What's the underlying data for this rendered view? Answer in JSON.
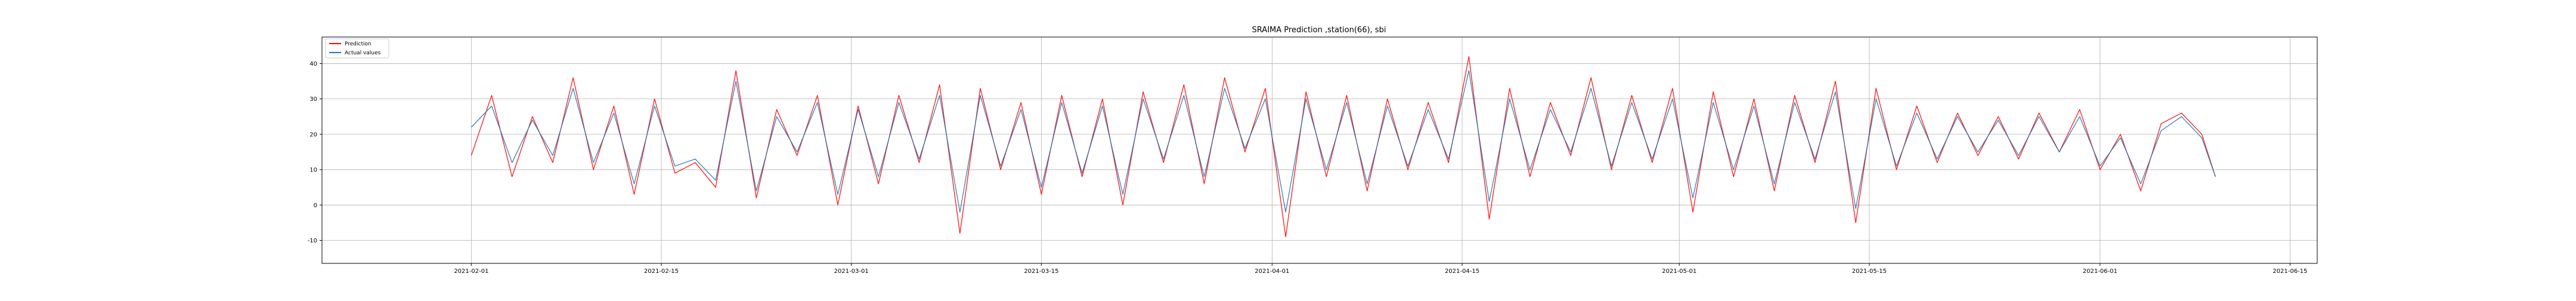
{
  "chart_data": {
    "type": "line",
    "title": "SRAIMA Prediction ,station(66), sbi",
    "xlabel": "",
    "ylabel": "",
    "x_range": [
      "2021-01-21",
      "2021-06-17"
    ],
    "xlim": [
      -11,
      136
    ],
    "ylim": [
      -16.5,
      47.5
    ],
    "grid": true,
    "legend_position": "top-left",
    "x_ticks": [
      {
        "label": "2021-02-01",
        "day": 0
      },
      {
        "label": "2021-02-15",
        "day": 14
      },
      {
        "label": "2021-03-01",
        "day": 28
      },
      {
        "label": "2021-03-15",
        "day": 42
      },
      {
        "label": "2021-04-01",
        "day": 59
      },
      {
        "label": "2021-04-15",
        "day": 73
      },
      {
        "label": "2021-05-01",
        "day": 89
      },
      {
        "label": "2021-05-15",
        "day": 103
      },
      {
        "label": "2021-06-01",
        "day": 120
      },
      {
        "label": "2021-06-15",
        "day": 134
      }
    ],
    "y_ticks": [
      -10,
      0,
      10,
      20,
      30,
      40
    ],
    "series": [
      {
        "name": "Prediction",
        "color": "#ff0000",
        "x": [
          0,
          1.5,
          3,
          4.5,
          6,
          7.5,
          9,
          10.5,
          12,
          13.5,
          15,
          16.5,
          18,
          19.5,
          21,
          22.5,
          24,
          25.5,
          27,
          28.5,
          30,
          31.5,
          33,
          34.5,
          36,
          37.5,
          39,
          40.5,
          42,
          43.5,
          45,
          46.5,
          48,
          49.5,
          51,
          52.5,
          54,
          55.5,
          57,
          58.5,
          60,
          61.5,
          63,
          64.5,
          66,
          67.5,
          69,
          70.5,
          72,
          73.5,
          75,
          76.5,
          78,
          79.5,
          81,
          82.5,
          84,
          85.5,
          87,
          88.5,
          90,
          91.5,
          93,
          94.5,
          96,
          97.5,
          99,
          100.5,
          102,
          103.5,
          105,
          106.5,
          108,
          109.5,
          111,
          112.5,
          114,
          115.5,
          117,
          118.5,
          120,
          121.5,
          123,
          124.5,
          126,
          127.5,
          128.5
        ],
        "values": [
          14,
          31,
          8,
          25,
          12,
          36,
          10,
          28,
          3,
          30,
          9,
          12,
          5,
          38,
          2,
          27,
          14,
          31,
          0,
          28,
          6,
          31,
          12,
          34,
          -8,
          33,
          10,
          29,
          3,
          31,
          8,
          30,
          0,
          32,
          12,
          34,
          6,
          36,
          15,
          33,
          -9,
          32,
          8,
          31,
          4,
          30,
          10,
          29,
          12,
          42,
          -4,
          33,
          8,
          29,
          14,
          36,
          10,
          31,
          12,
          33,
          -2,
          32,
          8,
          30,
          4,
          31,
          12,
          35,
          -5,
          33,
          10,
          28,
          12,
          26,
          14,
          25,
          13,
          26,
          15,
          27,
          10,
          20,
          4,
          23,
          26,
          20,
          8
        ]
      },
      {
        "name": "Actual values",
        "color": "#1f77b4",
        "x": [
          0,
          1.5,
          3,
          4.5,
          6,
          7.5,
          9,
          10.5,
          12,
          13.5,
          15,
          16.5,
          18,
          19.5,
          21,
          22.5,
          24,
          25.5,
          27,
          28.5,
          30,
          31.5,
          33,
          34.5,
          36,
          37.5,
          39,
          40.5,
          42,
          43.5,
          45,
          46.5,
          48,
          49.5,
          51,
          52.5,
          54,
          55.5,
          57,
          58.5,
          60,
          61.5,
          63,
          64.5,
          66,
          67.5,
          69,
          70.5,
          72,
          73.5,
          75,
          76.5,
          78,
          79.5,
          81,
          82.5,
          84,
          85.5,
          87,
          88.5,
          90,
          91.5,
          93,
          94.5,
          96,
          97.5,
          99,
          100.5,
          102,
          103.5,
          105,
          106.5,
          108,
          109.5,
          111,
          112.5,
          114,
          115.5,
          117,
          118.5,
          120,
          121.5,
          123,
          124.5,
          126,
          127.5,
          128.5
        ],
        "values": [
          22,
          28,
          12,
          24,
          14,
          33,
          12,
          26,
          6,
          28,
          11,
          13,
          7,
          35,
          4,
          25,
          15,
          29,
          3,
          27,
          8,
          29,
          13,
          31,
          -2,
          31,
          11,
          27,
          5,
          29,
          9,
          28,
          3,
          30,
          13,
          31,
          8,
          33,
          16,
          30,
          -2,
          30,
          10,
          29,
          6,
          28,
          11,
          27,
          13,
          38,
          1,
          30,
          10,
          27,
          15,
          33,
          11,
          29,
          13,
          30,
          2,
          29,
          10,
          28,
          6,
          29,
          13,
          32,
          -1,
          30,
          11,
          26,
          13,
          25,
          15,
          24,
          14,
          25,
          15,
          25,
          11,
          19,
          6,
          21,
          25,
          19,
          8
        ]
      }
    ]
  }
}
